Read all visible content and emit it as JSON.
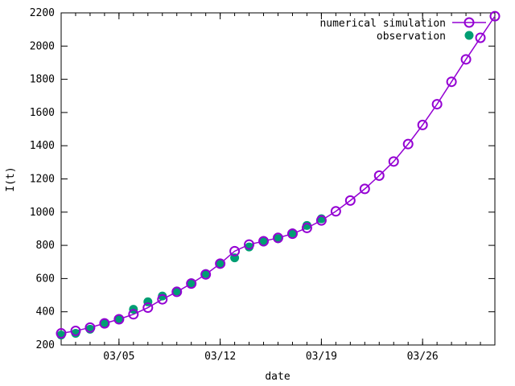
{
  "chart_data": {
    "type": "line",
    "xlabel": "date",
    "ylabel": "I(t)",
    "x_ticks": [
      {
        "label": "03/05",
        "day": 5
      },
      {
        "label": "03/12",
        "day": 12
      },
      {
        "label": "03/19",
        "day": 19
      },
      {
        "label": "03/26",
        "day": 26
      }
    ],
    "xlim": [
      1,
      31
    ],
    "ylim": [
      200,
      2200
    ],
    "y_ticks": [
      200,
      400,
      600,
      800,
      1000,
      1200,
      1400,
      1600,
      1800,
      2000,
      2200
    ],
    "legend_position": "top-right",
    "series": [
      {
        "name": "numerical simulation",
        "style": "line-open-circles",
        "color": "#9400d3",
        "x": [
          1,
          2,
          3,
          4,
          5,
          6,
          7,
          8,
          9,
          10,
          11,
          12,
          13,
          14,
          15,
          16,
          17,
          18,
          19,
          20,
          21,
          22,
          23,
          24,
          25,
          26,
          27,
          28,
          29,
          30,
          31
        ],
        "y": [
          270,
          285,
          305,
          330,
          355,
          385,
          425,
          475,
          520,
          570,
          625,
          690,
          765,
          805,
          825,
          845,
          870,
          905,
          950,
          1005,
          1070,
          1140,
          1220,
          1305,
          1410,
          1525,
          1650,
          1785,
          1920,
          2050,
          2180
        ]
      },
      {
        "name": "observation",
        "style": "filled-circles",
        "color": "#009e73",
        "x": [
          1,
          2,
          3,
          4,
          5,
          6,
          7,
          8,
          9,
          10,
          11,
          12,
          13,
          14,
          15,
          16,
          17,
          18,
          19
        ],
        "y": [
          260,
          270,
          295,
          330,
          355,
          415,
          460,
          495,
          525,
          575,
          630,
          690,
          725,
          790,
          820,
          840,
          875,
          920,
          960
        ]
      }
    ]
  }
}
